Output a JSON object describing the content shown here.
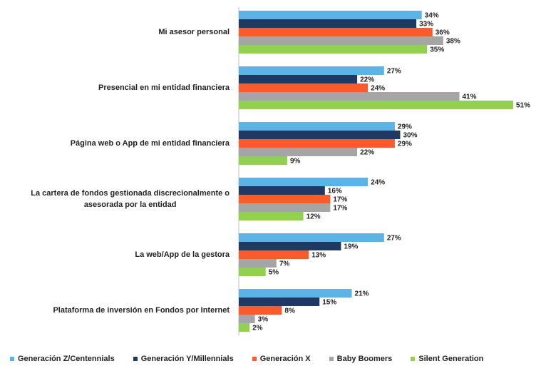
{
  "chart_data": {
    "type": "bar",
    "orientation": "horizontal",
    "categories": [
      "Mi asesor personal",
      "Presencial en mi entidad financiera",
      "Página web o App de mi entidad financiera",
      "La cartera de fondos gestionada discrecionalmente o\nasesorada por la entidad",
      "La web/App de la gestora",
      "Plataforma de inversión en Fondos por Internet"
    ],
    "series": [
      {
        "name": "Generación Z/Centennials",
        "color": "#5bb4e5",
        "values": [
          34,
          27,
          29,
          24,
          27,
          21
        ],
        "value_labels": [
          "34%",
          "27%",
          "29%",
          "24%",
          "27%",
          "21%"
        ]
      },
      {
        "name": "Generación Y/Millennials",
        "color": "#1f3864",
        "values": [
          33,
          22,
          30,
          16,
          19,
          15
        ],
        "value_labels": [
          "33%",
          "22%",
          "30%",
          "16%",
          "19%",
          "15%"
        ]
      },
      {
        "name": "Generación X",
        "color": "#fb5a2c",
        "values": [
          36,
          24,
          29,
          17,
          13,
          8
        ],
        "value_labels": [
          "36%",
          "24%",
          "29%",
          "17%",
          "13%",
          "8%"
        ]
      },
      {
        "name": "Baby Boomers",
        "color": "#a5a5a5",
        "values": [
          38,
          41,
          22,
          17,
          7,
          3
        ],
        "value_labels": [
          "38%",
          "41%",
          "22%",
          "17%",
          "7%",
          "3%"
        ]
      },
      {
        "name": "Silent Generation",
        "color": "#92d050",
        "values": [
          35,
          51,
          9,
          12,
          5,
          2
        ],
        "value_labels": [
          "35%",
          "51%",
          "9%",
          "12%",
          "5%",
          "2%"
        ]
      }
    ]
  }
}
